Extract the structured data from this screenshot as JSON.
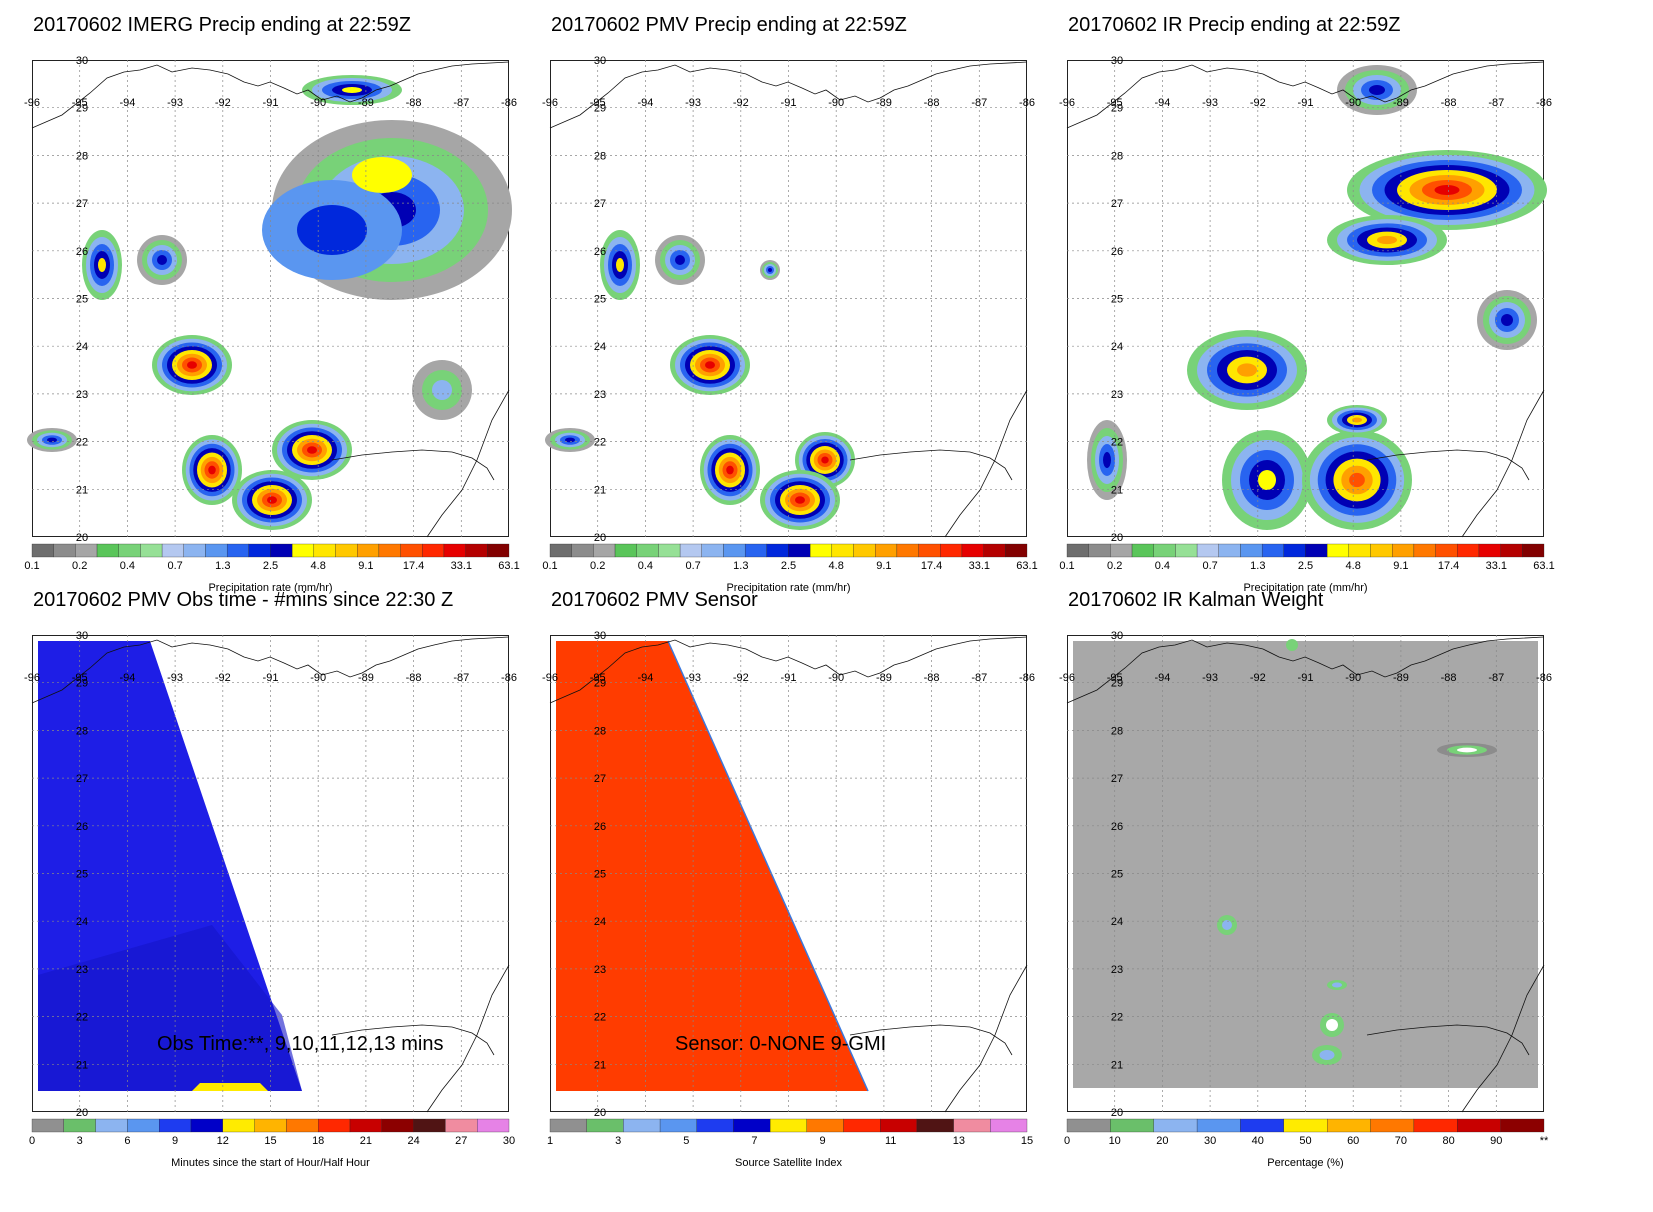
{
  "panels": [
    {
      "title": "20170602 IMERG Precip ending at 22:59Z",
      "kind": "precip",
      "lon_labels": [
        "-96",
        "-95",
        "-94",
        "-93",
        "-92",
        "-91",
        "-90",
        "-89",
        "-88",
        "-87",
        "-86"
      ],
      "lat_labels": [
        "30",
        "29",
        "28",
        "27",
        "26",
        "25",
        "24",
        "23",
        "22",
        "21",
        "20"
      ],
      "colorbar": {
        "ticks": [
          "0.1",
          "0.2",
          "0.4",
          "0.7",
          "1.3",
          "2.5",
          "4.8",
          "9.1",
          "17.4",
          "33.1",
          "63.1"
        ],
        "label": "Precipitation rate (mm/hr)"
      }
    },
    {
      "title": "20170602 PMV Precip ending at 22:59Z",
      "kind": "precip",
      "lon_labels": [
        "-96",
        "-95",
        "-94",
        "-93",
        "-92",
        "-91",
        "-90",
        "-89",
        "-88",
        "-87",
        "-86"
      ],
      "lat_labels": [
        "30",
        "29",
        "28",
        "27",
        "26",
        "25",
        "24",
        "23",
        "22",
        "21",
        "20"
      ],
      "colorbar": {
        "ticks": [
          "0.1",
          "0.2",
          "0.4",
          "0.7",
          "1.3",
          "2.5",
          "4.8",
          "9.1",
          "17.4",
          "33.1",
          "63.1"
        ],
        "label": "Precipitation rate (mm/hr)"
      }
    },
    {
      "title": "20170602 IR Precip ending at 22:59Z",
      "kind": "precip",
      "lon_labels": [
        "-96",
        "-95",
        "-94",
        "-93",
        "-92",
        "-91",
        "-90",
        "-89",
        "-88",
        "-87",
        "-86"
      ],
      "lat_labels": [
        "30",
        "29",
        "28",
        "27",
        "26",
        "25",
        "24",
        "23",
        "22",
        "21",
        "20"
      ],
      "colorbar": {
        "ticks": [
          "0.1",
          "0.2",
          "0.4",
          "0.7",
          "1.3",
          "2.5",
          "4.8",
          "9.1",
          "17.4",
          "33.1",
          "63.1"
        ],
        "label": "Precipitation rate (mm/hr)"
      }
    },
    {
      "title": "20170602 PMV Obs time - #mins since 22:30 Z",
      "kind": "obstime",
      "annotation": "Obs Time:**, 9,10,11,12,13 mins",
      "lon_labels": [
        "-96",
        "-95",
        "-94",
        "-93",
        "-92",
        "-91",
        "-90",
        "-89",
        "-88",
        "-87",
        "-86"
      ],
      "lat_labels": [
        "30",
        "29",
        "28",
        "27",
        "26",
        "25",
        "24",
        "23",
        "22",
        "21",
        "20"
      ],
      "colorbar": {
        "ticks": [
          "0",
          "3",
          "6",
          "9",
          "12",
          "15",
          "18",
          "21",
          "24",
          "27",
          "30"
        ],
        "label": "Minutes since the start of Hour/Half Hour"
      }
    },
    {
      "title": "20170602 PMV Sensor",
      "kind": "sensor",
      "annotation": "Sensor:  0-NONE 9-GMI",
      "lon_labels": [
        "-96",
        "-95",
        "-94",
        "-93",
        "-92",
        "-91",
        "-90",
        "-89",
        "-88",
        "-87",
        "-86"
      ],
      "lat_labels": [
        "30",
        "29",
        "28",
        "27",
        "26",
        "25",
        "24",
        "23",
        "22",
        "21",
        "20"
      ],
      "colorbar": {
        "ticks": [
          "1",
          "3",
          "5",
          "7",
          "9",
          "11",
          "13",
          "15"
        ],
        "label": "Source Satellite Index"
      }
    },
    {
      "title": "20170602 IR Kalman Weight",
      "kind": "kalman",
      "lon_labels": [
        "-96",
        "-95",
        "-94",
        "-93",
        "-92",
        "-91",
        "-90",
        "-89",
        "-88",
        "-87",
        "-86"
      ],
      "lat_labels": [
        "30",
        "29",
        "28",
        "27",
        "26",
        "25",
        "24",
        "23",
        "22",
        "21",
        "20"
      ],
      "colorbar": {
        "ticks": [
          "0",
          "10",
          "20",
          "30",
          "40",
          "50",
          "60",
          "70",
          "80",
          "90",
          "**"
        ],
        "label": "Percentage (%)"
      }
    }
  ],
  "colors": {
    "precip_scale": [
      "#6e6e6e",
      "#8c8c8c",
      "#a6a6a6",
      "#5ac55a",
      "#78d278",
      "#96e096",
      "#b4c8f0",
      "#8cb4f0",
      "#5a96f0",
      "#2864f0",
      "#0028dc",
      "#0000b4",
      "#ffff00",
      "#ffe600",
      "#ffc800",
      "#ffa000",
      "#ff7800",
      "#ff5000",
      "#ff2800",
      "#e60000",
      "#b40000",
      "#820000"
    ],
    "time_scale": [
      "#909090",
      "#6abf6a",
      "#8cb4f0",
      "#5a96f0",
      "#1e3cf0",
      "#0000c8",
      "#ffeb00",
      "#ffb400",
      "#ff7800",
      "#ff2800",
      "#c80000",
      "#8c0000",
      "#501414",
      "#f08ca0",
      "#e682e6"
    ],
    "sensor_scale": [
      "#909090",
      "#6abf6a",
      "#8cb4f0",
      "#5a96f0",
      "#1e3cf0",
      "#0000c8",
      "#ffeb00",
      "#ff7800",
      "#ff2800",
      "#c80000",
      "#501414",
      "#f08ca0",
      "#e682e6"
    ],
    "kalman_scale": [
      "#909090",
      "#6abf6a",
      "#8cb4f0",
      "#5a96f0",
      "#1e3cf0",
      "#ffeb00",
      "#ffb400",
      "#ff7800",
      "#ff2800",
      "#c80000",
      "#8c0000"
    ],
    "obs_fill": "#1e1ee6",
    "sensor_fill": "#ff3c00",
    "kalman_bg": "#a8a8a8"
  }
}
